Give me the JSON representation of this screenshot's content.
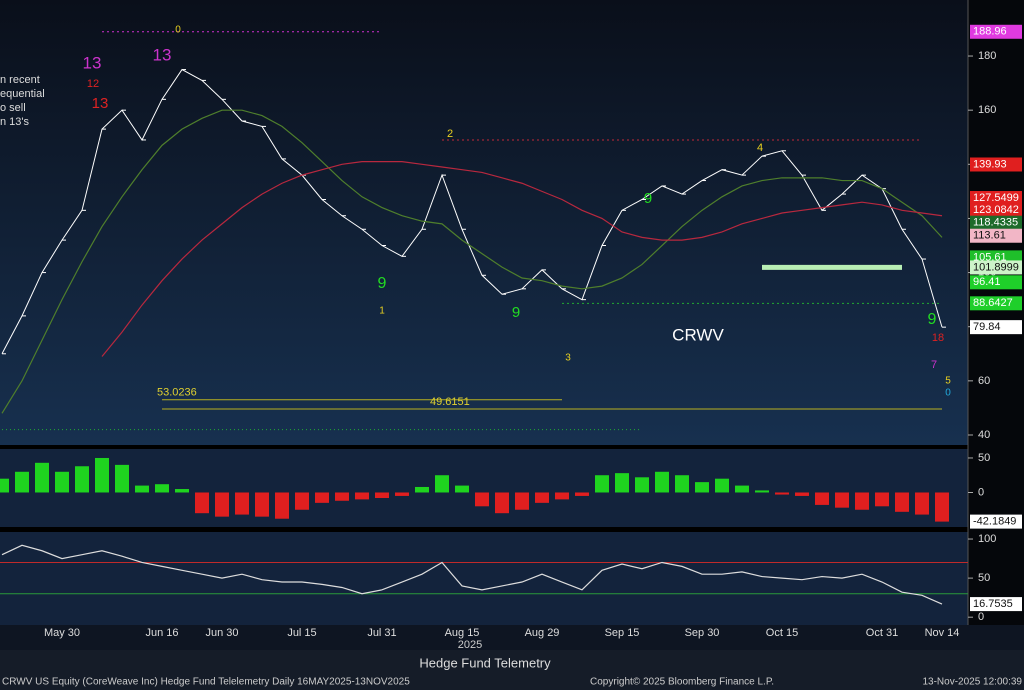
{
  "title": "Hedge Fund Telemetry",
  "year": "2025",
  "footer": {
    "left": "CRWV US Equity (CoreWeave Inc) Hedge Fund Telelemetry Daily 16MAY2025-13NOV2025",
    "center": "Copyright© 2025 Bloomberg Finance L.P.",
    "right": "13-Nov-2025 12:00:39"
  },
  "note": [
    "n recent",
    "equential",
    "o sell",
    "n 13's"
  ],
  "chart_data": [
    {
      "type": "line",
      "label": "CRWV",
      "categories": [
        null,
        null,
        null,
        "May 30",
        null,
        null,
        null,
        null,
        "Jun 16",
        null,
        null,
        "Jun 30",
        null,
        null,
        null,
        "Jul 15",
        null,
        null,
        null,
        "Jul 31",
        null,
        null,
        null,
        "Aug 15",
        null,
        null,
        null,
        "Aug 29",
        null,
        null,
        null,
        "Sep 15",
        null,
        null,
        null,
        "Sep 30",
        null,
        null,
        null,
        "Oct 15",
        null,
        null,
        null,
        null,
        "Oct 31",
        null,
        null,
        "Nov 14"
      ],
      "series": [
        {
          "color": "#ffffff",
          "values": [
            70,
            84,
            100,
            112,
            123,
            153,
            160,
            149,
            164,
            175,
            171,
            164,
            156,
            154,
            142,
            136,
            127,
            121,
            116,
            110,
            106,
            116,
            136,
            116,
            99,
            92,
            94,
            101,
            94,
            90,
            110,
            123,
            127,
            132,
            129,
            134,
            138,
            136,
            143,
            145,
            136,
            123,
            129,
            136,
            131,
            116,
            105,
            79.84
          ]
        },
        {
          "color": "#4f7f2c",
          "values": [
            48,
            60,
            75,
            90,
            104,
            117,
            128,
            138,
            147,
            153,
            157,
            160,
            160,
            158,
            154,
            148,
            141,
            134,
            128,
            124,
            121,
            119,
            118,
            112,
            107,
            102,
            98,
            97,
            95,
            94,
            95,
            98,
            103,
            110,
            117,
            123,
            128,
            132,
            134,
            135,
            135,
            135,
            134,
            134,
            131,
            126,
            121,
            113
          ]
        },
        {
          "color": "#b8283e",
          "values": [
            null,
            null,
            null,
            null,
            null,
            69,
            78,
            88,
            97,
            105,
            112,
            118,
            124,
            129,
            133,
            136,
            138,
            140,
            141,
            141,
            141,
            140,
            139,
            138,
            137,
            135,
            133,
            130,
            127,
            123,
            120,
            115,
            113,
            112,
            112,
            113,
            115,
            118,
            120,
            122,
            123,
            124,
            125,
            126,
            125,
            123,
            122,
            121
          ]
        }
      ],
      "ylim": [
        36.3,
        200.7
      ],
      "yticks": [
        40,
        60,
        80,
        100,
        120,
        140,
        160,
        180
      ],
      "price_labels": [
        {
          "value": 188.96,
          "color": "#e03ae0"
        },
        {
          "value": 139.93,
          "color": "#e01f1f"
        },
        {
          "value": 127.5499,
          "color": "#e01f1f"
        },
        {
          "value": 123.0842,
          "color": "#e01f1f"
        },
        {
          "value": 118.4335,
          "color": "#1d6b2a"
        },
        {
          "value": 113.61,
          "color": "#f2b6c6"
        },
        {
          "value": 105.61,
          "color": "#1fbf2a"
        },
        {
          "value": 101.8999,
          "color": "#cdf3c9"
        },
        {
          "value": 96.41,
          "color": "#1fcf2a"
        },
        {
          "value": 88.6427,
          "color": "#1fcf2a"
        }
      ],
      "levels": [
        {
          "value": 188.96,
          "color": "#d030d0"
        },
        {
          "value": 149,
          "color": "#c02838"
        },
        {
          "value": 53.0236,
          "color": "#b8b020"
        },
        {
          "value": 49.6151,
          "color": "#b8b020"
        },
        {
          "value": 88.6427,
          "color": "#22aa33"
        },
        {
          "value": 101.8999,
          "color": "#b8eeb4"
        },
        {
          "value": 42,
          "color": "#22aa33"
        }
      ],
      "counts": [
        {
          "text": "13",
          "color": "#cc33cc"
        },
        {
          "text": "12",
          "color": "#dd2222"
        },
        {
          "text": "13",
          "color": "#cc33cc"
        },
        {
          "text": "13",
          "color": "#dd2222"
        },
        {
          "text": "0",
          "color": "#e8d020"
        },
        {
          "text": "2",
          "color": "#e8d020"
        },
        {
          "text": "9",
          "color": "#22dd22"
        },
        {
          "text": "1",
          "color": "#e8d020"
        },
        {
          "text": "9",
          "color": "#22dd22"
        },
        {
          "text": "3",
          "color": "#e8d020"
        },
        {
          "text": "9",
          "color": "#22dd22"
        },
        {
          "text": "4",
          "color": "#e8d020"
        },
        {
          "text": "9",
          "color": "#22dd22"
        },
        {
          "text": "18",
          "color": "#dd2222"
        },
        {
          "text": "7",
          "color": "#cc33cc"
        },
        {
          "text": "5",
          "color": "#e8d020"
        },
        {
          "text": "0",
          "color": "#22aadd"
        }
      ]
    },
    {
      "type": "bar",
      "up_color": "#1fd41f",
      "down_color": "#e01f1f",
      "ylim": [
        -50,
        63
      ],
      "yticks": [
        0,
        50
      ],
      "values": [
        20,
        30,
        43,
        30,
        38,
        50,
        40,
        10,
        12,
        5,
        -30,
        -35,
        -32,
        -35,
        -38,
        -25,
        -15,
        -12,
        -10,
        -8,
        -5,
        8,
        25,
        10,
        -20,
        -30,
        -25,
        -15,
        -10,
        -5,
        25,
        28,
        22,
        30,
        25,
        15,
        20,
        10,
        3,
        -3,
        -5,
        -18,
        -22,
        -25,
        -20,
        -28,
        -32,
        -42.1849
      ]
    },
    {
      "type": "line",
      "color": "#dddddd",
      "ylim": [
        -10,
        109
      ],
      "yticks": [
        0,
        50,
        100
      ],
      "bands": [
        {
          "value": 70,
          "color": "#c02a2a"
        },
        {
          "value": 30,
          "color": "#2a9a3a"
        }
      ],
      "values": [
        80,
        92,
        85,
        75,
        80,
        85,
        78,
        70,
        65,
        60,
        55,
        50,
        55,
        48,
        45,
        45,
        42,
        38,
        30,
        35,
        45,
        55,
        70,
        40,
        35,
        40,
        45,
        55,
        45,
        35,
        60,
        68,
        62,
        70,
        65,
        55,
        55,
        58,
        52,
        50,
        48,
        52,
        50,
        55,
        45,
        32,
        28,
        16.7535
      ]
    }
  ]
}
